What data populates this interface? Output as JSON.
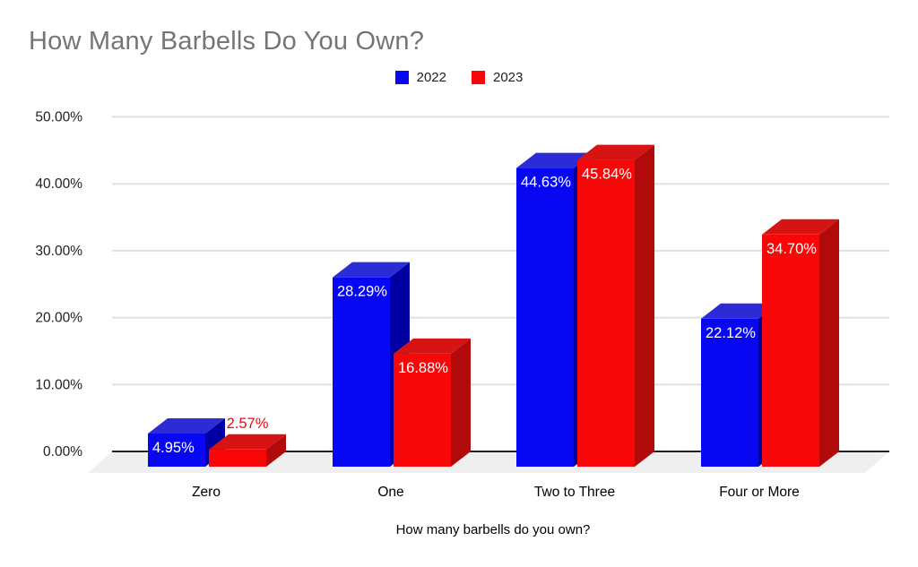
{
  "title": "How Many Barbells Do You Own?",
  "chart_data": {
    "type": "bar",
    "style": "3d-column-grouped",
    "title": "How Many Barbells Do You Own?",
    "xlabel": "How many barbells do you own?",
    "ylabel": "",
    "categories": [
      "Zero",
      "One",
      "Two to Three",
      "Four or More"
    ],
    "series": [
      {
        "name": "2022",
        "values": [
          4.95,
          28.29,
          44.63,
          22.12
        ],
        "labels": [
          "4.95%",
          "28.29%",
          "44.63%",
          "22.12%"
        ],
        "color": "#0707f2",
        "top_color": "#2c2cd6",
        "side_color": "#0000a2"
      },
      {
        "name": "2023",
        "values": [
          2.57,
          16.88,
          45.84,
          34.7
        ],
        "labels": [
          "2.57%",
          "16.88%",
          "45.84%",
          "34.70%"
        ],
        "color": "#f70707",
        "top_color": "#d61414",
        "side_color": "#b00a0a"
      }
    ],
    "ylim": [
      0,
      50
    ],
    "ytick_step": 10,
    "ytick_labels": [
      "0.00%",
      "10.00%",
      "20.00%",
      "30.00%",
      "40.00%",
      "50.00%"
    ],
    "grid": true,
    "legend_position": "top-center"
  },
  "colors": {
    "title_text": "#757575",
    "axis_text": "#212121",
    "gridline": "#e0e0e0",
    "zero_line": "#212121",
    "floor": "#efefef",
    "value_label_inside": "#ffffff",
    "background": "#ffffff"
  }
}
